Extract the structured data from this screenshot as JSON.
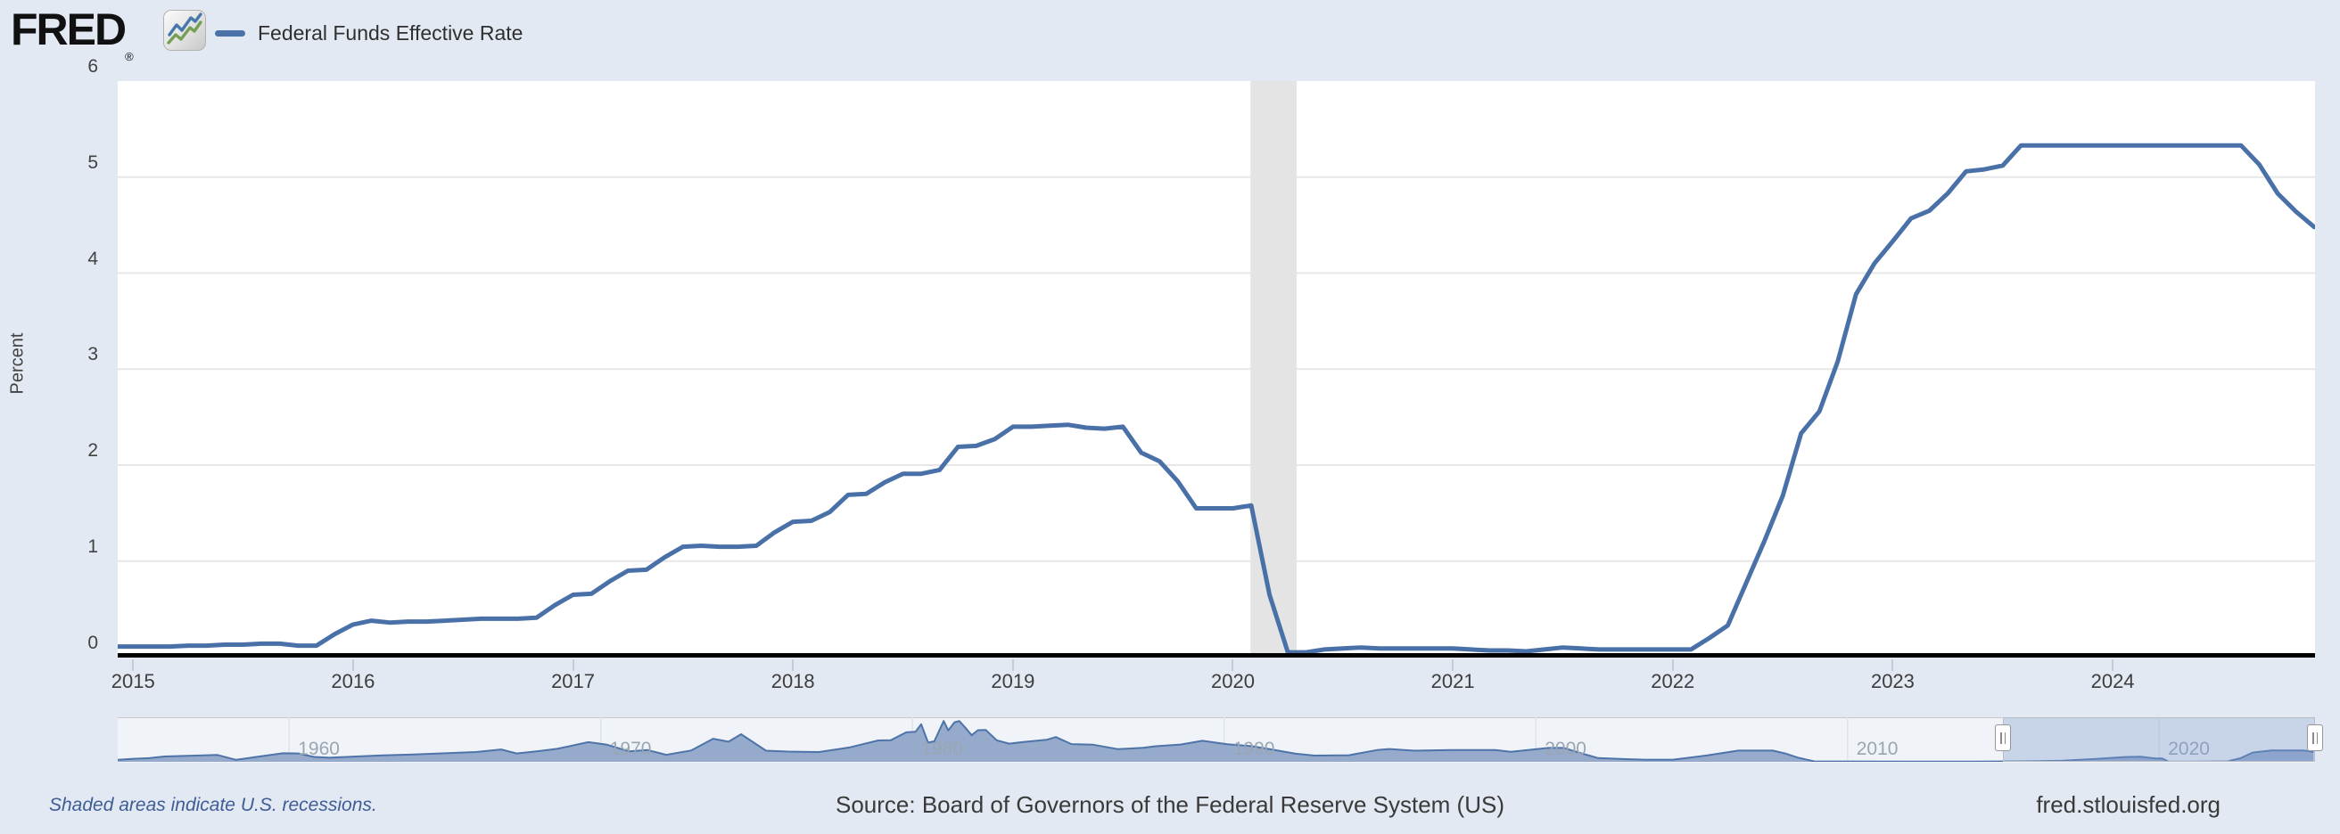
{
  "header": {
    "logo_text": "FRED",
    "logo_registered": "®",
    "legend": {
      "label": "Federal Funds Effective Rate"
    }
  },
  "y_axis": {
    "title": "Percent",
    "labels": [
      "6",
      "5",
      "4",
      "3",
      "2",
      "1",
      "0"
    ],
    "min": 0,
    "max": 6
  },
  "x_axis": {
    "labels": [
      "2015",
      "2016",
      "2017",
      "2018",
      "2019",
      "2020",
      "2021",
      "2022",
      "2023",
      "2024"
    ]
  },
  "navigator": {
    "decade_labels": [
      "1960",
      "1970",
      "1980",
      "1990",
      "2000",
      "2010",
      "2020"
    ]
  },
  "footer": {
    "recession_note": "Shaded areas indicate U.S. recessions.",
    "source": "Source: Board of Governors of the Federal Reserve System (US)",
    "site": "fred.stlouisfed.org"
  },
  "colors": {
    "page_bg": "#e3e9f2",
    "plot_bg": "#ffffff",
    "line": "#4a70a8",
    "grid": "#e7e7e7",
    "recession_band": "#e4e4e4",
    "axis_black": "#000000",
    "nav_fill": "#96abcb",
    "nav_line": "#4e73a9",
    "nav_mask": "rgba(125,155,205,0.35)",
    "nav_label": "#9aa5b2"
  },
  "chart_data": [
    {
      "type": "line",
      "name": "Federal Funds Effective Rate",
      "title": "Federal Funds Effective Rate",
      "ylabel": "Percent",
      "x_range": [
        2014.93,
        2024.92
      ],
      "ylim": [
        0,
        6
      ],
      "grid_values": [
        1,
        2,
        3,
        4,
        5
      ],
      "x_start": 2015.0,
      "x_step_months": 1,
      "recession_band": {
        "from": 2020.08,
        "to": 2020.29
      },
      "values": [
        0.11,
        0.11,
        0.11,
        0.12,
        0.12,
        0.13,
        0.13,
        0.14,
        0.14,
        0.12,
        0.12,
        0.24,
        0.34,
        0.38,
        0.36,
        0.37,
        0.37,
        0.38,
        0.39,
        0.4,
        0.4,
        0.4,
        0.41,
        0.54,
        0.65,
        0.66,
        0.79,
        0.9,
        0.91,
        1.04,
        1.15,
        1.16,
        1.15,
        1.15,
        1.16,
        1.3,
        1.41,
        1.42,
        1.51,
        1.69,
        1.7,
        1.82,
        1.91,
        1.91,
        1.95,
        2.19,
        2.2,
        2.27,
        2.4,
        2.4,
        2.41,
        2.42,
        2.39,
        2.38,
        2.4,
        2.13,
        2.04,
        1.83,
        1.55,
        1.55,
        1.55,
        1.58,
        0.65,
        0.05,
        0.05,
        0.08,
        0.09,
        0.1,
        0.09,
        0.09,
        0.09,
        0.09,
        0.09,
        0.08,
        0.07,
        0.07,
        0.06,
        0.08,
        0.1,
        0.09,
        0.08,
        0.08,
        0.08,
        0.08,
        0.08,
        0.08,
        0.2,
        0.33,
        0.77,
        1.21,
        1.68,
        2.33,
        2.56,
        3.08,
        3.78,
        4.1,
        4.33,
        4.57,
        4.65,
        4.83,
        5.06,
        5.08,
        5.12,
        5.33,
        5.33,
        5.33,
        5.33,
        5.33,
        5.33,
        5.33,
        5.33,
        5.33,
        5.33,
        5.33,
        5.33,
        5.33,
        5.13,
        4.83,
        4.64,
        4.48
      ]
    },
    {
      "type": "area",
      "name": "navigator-full-history",
      "x_range": [
        1954.5,
        2025.0
      ],
      "ylim": [
        0,
        20
      ],
      "selected_range": [
        2015.0,
        2025.0
      ],
      "points": [
        [
          1954.5,
          0.9
        ],
        [
          1955,
          1.4
        ],
        [
          1955.5,
          1.7
        ],
        [
          1956,
          2.5
        ],
        [
          1957,
          2.9
        ],
        [
          1957.7,
          3.2
        ],
        [
          1958.3,
          0.9
        ],
        [
          1959,
          2.4
        ],
        [
          1959.8,
          4.0
        ],
        [
          1960.3,
          3.9
        ],
        [
          1960.8,
          2.3
        ],
        [
          1961.3,
          1.9
        ],
        [
          1962,
          2.4
        ],
        [
          1963,
          3.0
        ],
        [
          1964,
          3.4
        ],
        [
          1965,
          4.0
        ],
        [
          1966,
          4.6
        ],
        [
          1966.8,
          5.8
        ],
        [
          1967.3,
          3.9
        ],
        [
          1968,
          5.0
        ],
        [
          1968.6,
          6.1
        ],
        [
          1969.6,
          9.2
        ],
        [
          1970.2,
          8.0
        ],
        [
          1970.9,
          4.9
        ],
        [
          1971.5,
          5.5
        ],
        [
          1972.1,
          3.3
        ],
        [
          1972.9,
          5.3
        ],
        [
          1973.6,
          10.8
        ],
        [
          1974.1,
          9.4
        ],
        [
          1974.5,
          12.9
        ],
        [
          1975.3,
          5.2
        ],
        [
          1976,
          4.8
        ],
        [
          1977,
          4.6
        ],
        [
          1978,
          6.8
        ],
        [
          1978.9,
          10.0
        ],
        [
          1979.3,
          10.1
        ],
        [
          1979.8,
          13.8
        ],
        [
          1980.1,
          14.1
        ],
        [
          1980.28,
          17.6
        ],
        [
          1980.5,
          9.0
        ],
        [
          1980.7,
          9.6
        ],
        [
          1981.0,
          19.1
        ],
        [
          1981.15,
          14.7
        ],
        [
          1981.35,
          18.5
        ],
        [
          1981.5,
          19.1
        ],
        [
          1981.7,
          15.9
        ],
        [
          1981.9,
          12.4
        ],
        [
          1982.1,
          14.8
        ],
        [
          1982.35,
          14.9
        ],
        [
          1982.7,
          10.1
        ],
        [
          1983.1,
          8.5
        ],
        [
          1983.7,
          9.5
        ],
        [
          1984.3,
          10.3
        ],
        [
          1984.6,
          11.6
        ],
        [
          1985.1,
          8.3
        ],
        [
          1985.8,
          8.0
        ],
        [
          1986.6,
          5.9
        ],
        [
          1987.4,
          6.6
        ],
        [
          1987.8,
          7.3
        ],
        [
          1988.6,
          8.1
        ],
        [
          1989.3,
          9.85
        ],
        [
          1990.1,
          8.2
        ],
        [
          1990.9,
          7.3
        ],
        [
          1991.6,
          5.6
        ],
        [
          1992.3,
          3.8
        ],
        [
          1992.9,
          2.9
        ],
        [
          1994.0,
          3.1
        ],
        [
          1994.9,
          5.5
        ],
        [
          1995.3,
          6.0
        ],
        [
          1996.1,
          5.2
        ],
        [
          1997.3,
          5.5
        ],
        [
          1998.7,
          5.5
        ],
        [
          1999.2,
          4.7
        ],
        [
          2000.4,
          6.5
        ],
        [
          2000.9,
          6.5
        ],
        [
          2001.5,
          3.8
        ],
        [
          2002.0,
          1.75
        ],
        [
          2002.9,
          1.25
        ],
        [
          2003.5,
          1.0
        ],
        [
          2004.4,
          1.0
        ],
        [
          2005.5,
          3.0
        ],
        [
          2006.5,
          5.25
        ],
        [
          2007.6,
          5.25
        ],
        [
          2008.0,
          3.9
        ],
        [
          2008.4,
          2.0
        ],
        [
          2008.95,
          0.15
        ],
        [
          2010,
          0.18
        ],
        [
          2012,
          0.14
        ],
        [
          2014,
          0.09
        ],
        [
          2015.9,
          0.24
        ],
        [
          2016.9,
          0.54
        ],
        [
          2017.9,
          1.3
        ],
        [
          2018.9,
          2.27
        ],
        [
          2019.4,
          2.4
        ],
        [
          2019.9,
          1.55
        ],
        [
          2020.1,
          1.58
        ],
        [
          2020.3,
          0.05
        ],
        [
          2021.5,
          0.07
        ],
        [
          2022.2,
          0.2
        ],
        [
          2022.6,
          1.68
        ],
        [
          2023.0,
          4.33
        ],
        [
          2023.6,
          5.33
        ],
        [
          2024.6,
          5.33
        ],
        [
          2024.75,
          5.13
        ],
        [
          2024.95,
          4.48
        ]
      ]
    }
  ]
}
